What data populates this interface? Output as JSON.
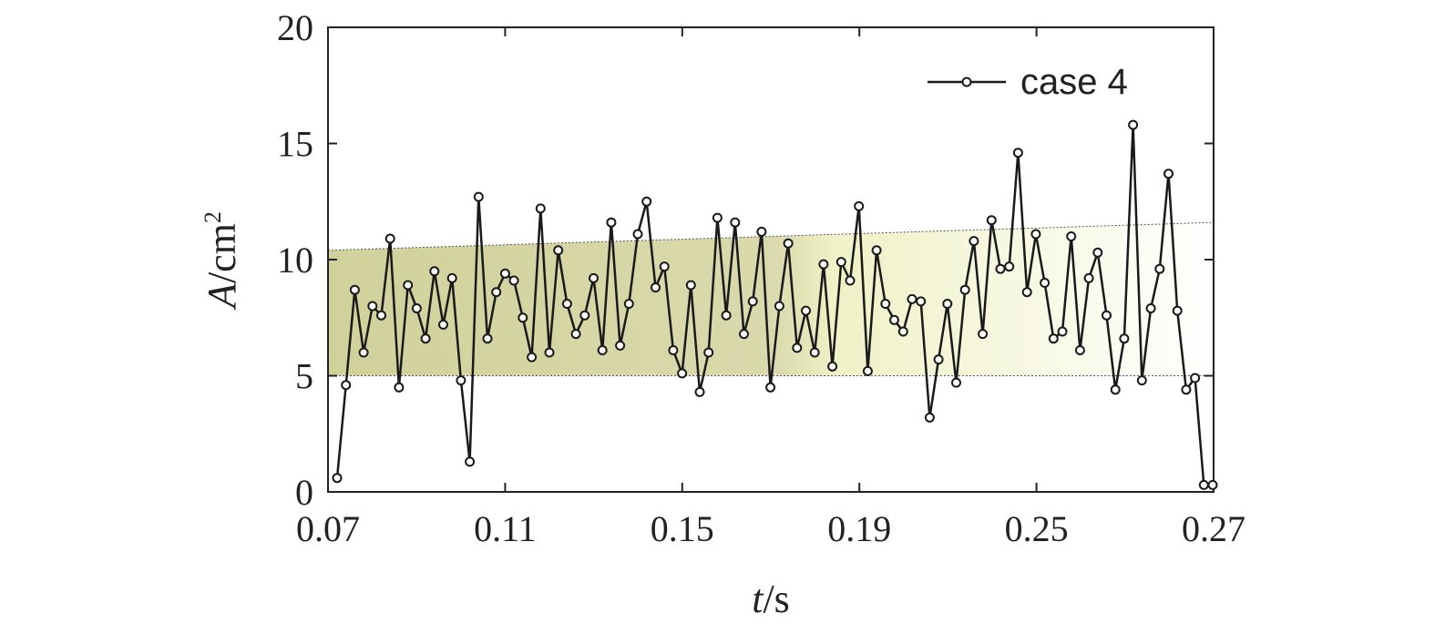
{
  "chart_data": {
    "type": "line",
    "xlabel_var": "t",
    "xlabel_unit": "/s",
    "ylabel_var": "A",
    "ylabel_unit": "/cm",
    "ylabel_exp": "2",
    "ylim": [
      0,
      20
    ],
    "y_ticks": [
      "0",
      "5",
      "10",
      "15",
      "20"
    ],
    "x_tick_labels": [
      "0.07",
      "0.11",
      "0.15",
      "0.19",
      "0.25",
      "0.27"
    ],
    "x_note": "x axis tick labels are non-uniform; x values below are expressed as positions along the printed tick labels (0.07 to 0.27 span)",
    "legend": {
      "position": "top-right",
      "label": "case 4"
    },
    "series_color": "#1a1a1a",
    "band_colors": {
      "dark": "#c9c98a",
      "light": "#eef0c0"
    },
    "band_lower": 5,
    "band_upper": [
      10.4,
      11.6
    ],
    "series": [
      {
        "name": "case 4",
        "values": [
          0.6,
          4.6,
          8.7,
          6.0,
          8.0,
          7.6,
          10.9,
          4.5,
          8.9,
          7.9,
          6.6,
          9.5,
          7.2,
          9.2,
          4.8,
          1.3,
          12.7,
          6.6,
          8.6,
          9.4,
          9.1,
          7.5,
          5.8,
          12.2,
          6.0,
          10.4,
          8.1,
          6.8,
          7.6,
          9.2,
          6.1,
          11.6,
          6.3,
          8.1,
          11.1,
          12.5,
          8.8,
          9.7,
          6.1,
          5.1,
          8.9,
          4.3,
          6.0,
          11.8,
          7.6,
          11.6,
          6.8,
          8.2,
          11.2,
          4.5,
          8.0,
          10.7,
          6.2,
          7.8,
          6.0,
          9.8,
          5.4,
          9.9,
          9.1,
          12.3,
          5.2,
          10.4,
          8.1,
          7.4,
          6.9,
          8.3,
          8.2,
          3.2,
          5.7,
          8.1,
          4.7,
          8.7,
          10.8,
          6.8,
          11.7,
          9.6,
          9.7,
          14.6,
          8.6,
          11.1,
          9.0,
          6.6,
          6.9,
          11.0,
          6.1,
          9.2,
          10.3,
          7.6,
          4.4,
          6.6,
          15.8,
          4.8,
          7.9,
          9.6,
          13.7,
          7.8,
          4.4,
          4.9,
          0.3,
          0.3
        ]
      }
    ]
  }
}
